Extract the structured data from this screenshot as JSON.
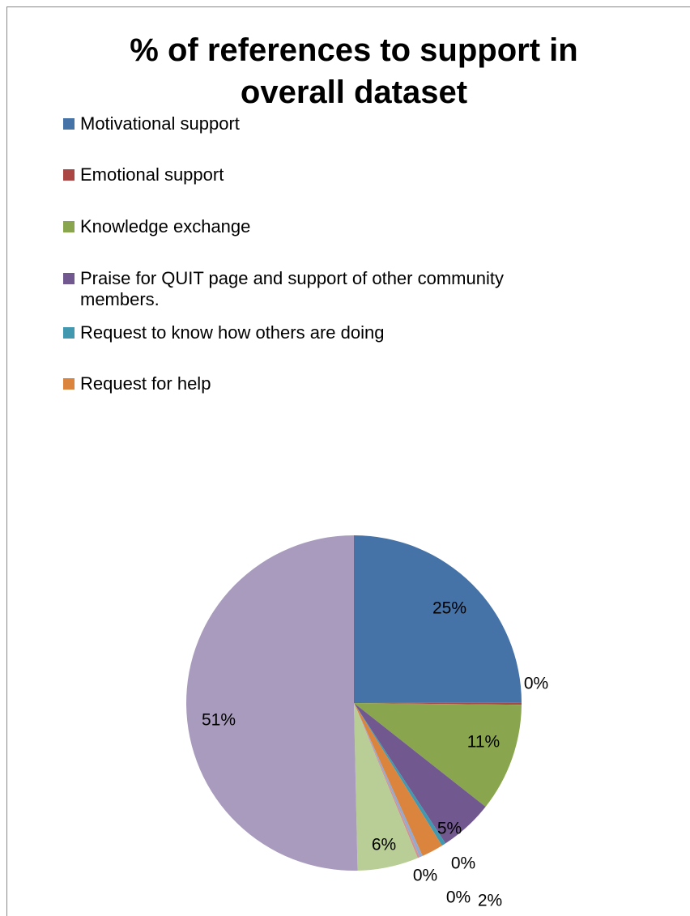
{
  "chart_data": {
    "type": "pie",
    "title": "% of references to support in overall dataset",
    "categories": [
      "Motivational support",
      "Emotional support",
      "Knowledge exchange",
      "Praise for QUIT page and support of other community members.",
      "Request to know how others are doing",
      "Request for help",
      null,
      null,
      null,
      null
    ],
    "values": [
      25.1,
      0.2,
      10.5,
      5.2,
      0.4,
      2.1,
      0.3,
      0.2,
      5.9,
      50.6
    ],
    "value_labels": [
      "25%",
      "0%",
      "11%",
      "5%",
      "0%",
      "2%",
      "0%",
      "0%",
      "6%",
      "51%"
    ],
    "colors": [
      "#4572a7",
      "#aa4643",
      "#89a54e",
      "#71588f",
      "#4198af",
      "#db843d",
      "#93a9cf",
      "#d19392",
      "#b9cd96",
      "#a99bbd"
    ],
    "legend": "top-left"
  }
}
